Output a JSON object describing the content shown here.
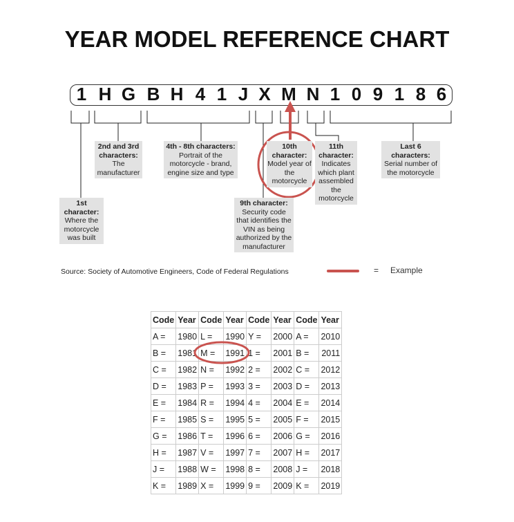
{
  "title": "YEAR MODEL REFERENCE CHART",
  "vin_characters": [
    "1",
    "H",
    "G",
    "B",
    "H",
    "4",
    "1",
    "J",
    "X",
    "M",
    "N",
    "1",
    "0",
    "9",
    "1",
    "8",
    "6"
  ],
  "labels": [
    {
      "heading": "1st character:",
      "text": "Where the motorcycle was built"
    },
    {
      "heading": "2nd and 3rd characters:",
      "text": "The manufacturer"
    },
    {
      "heading": "4th - 8th characters:",
      "text": "Portrait of the motorcycle - brand, engine size and type"
    },
    {
      "heading": "9th character:",
      "text": "Security code that identifies the VIN as being authorized by the manufacturer"
    },
    {
      "heading": "10th character:",
      "text": "Model year of the motorcycle"
    },
    {
      "heading": "11th character:",
      "text": "Indicates which plant assembled the motorcycle"
    },
    {
      "heading": "Last 6 characters:",
      "text": "Serial number of the motorcycle"
    }
  ],
  "source": "Source:  Society of Automotive Engineers, Code of Federal Regulations",
  "legend": {
    "equals": "=",
    "label": "Example"
  },
  "highlight_color": "#c9534f",
  "table": {
    "headers": [
      "Code",
      "Year",
      "Code",
      "Year",
      "Code",
      "Year",
      "Code",
      "Year"
    ],
    "rows": [
      [
        "A =",
        "1980",
        "L =",
        "1990",
        "Y =",
        "2000",
        "A =",
        "2010"
      ],
      [
        "B =",
        "1981",
        "M =",
        "1991",
        "1 =",
        "2001",
        "B =",
        "2011"
      ],
      [
        "C =",
        "1982",
        "N =",
        "1992",
        "2 =",
        "2002",
        "C =",
        "2012"
      ],
      [
        "D =",
        "1983",
        "P =",
        "1993",
        "3 =",
        "2003",
        "D =",
        "2013"
      ],
      [
        "E =",
        "1984",
        "R =",
        "1994",
        "4 =",
        "2004",
        "E =",
        "2014"
      ],
      [
        "F =",
        "1985",
        "S =",
        "1995",
        "5 =",
        "2005",
        "F =",
        "2015"
      ],
      [
        "G =",
        "1986",
        "T =",
        "1996",
        "6 =",
        "2006",
        "G =",
        "2016"
      ],
      [
        "H =",
        "1987",
        "V =",
        "1997",
        "7 =",
        "2007",
        "H =",
        "2017"
      ],
      [
        "J =",
        "1988",
        "W =",
        "1998",
        "8 =",
        "2008",
        "J =",
        "2018"
      ],
      [
        "K =",
        "1989",
        "X =",
        "1999",
        "9 =",
        "2009",
        "K =",
        "2019"
      ]
    ],
    "highlighted": {
      "code": "M =",
      "year": "1991"
    }
  }
}
